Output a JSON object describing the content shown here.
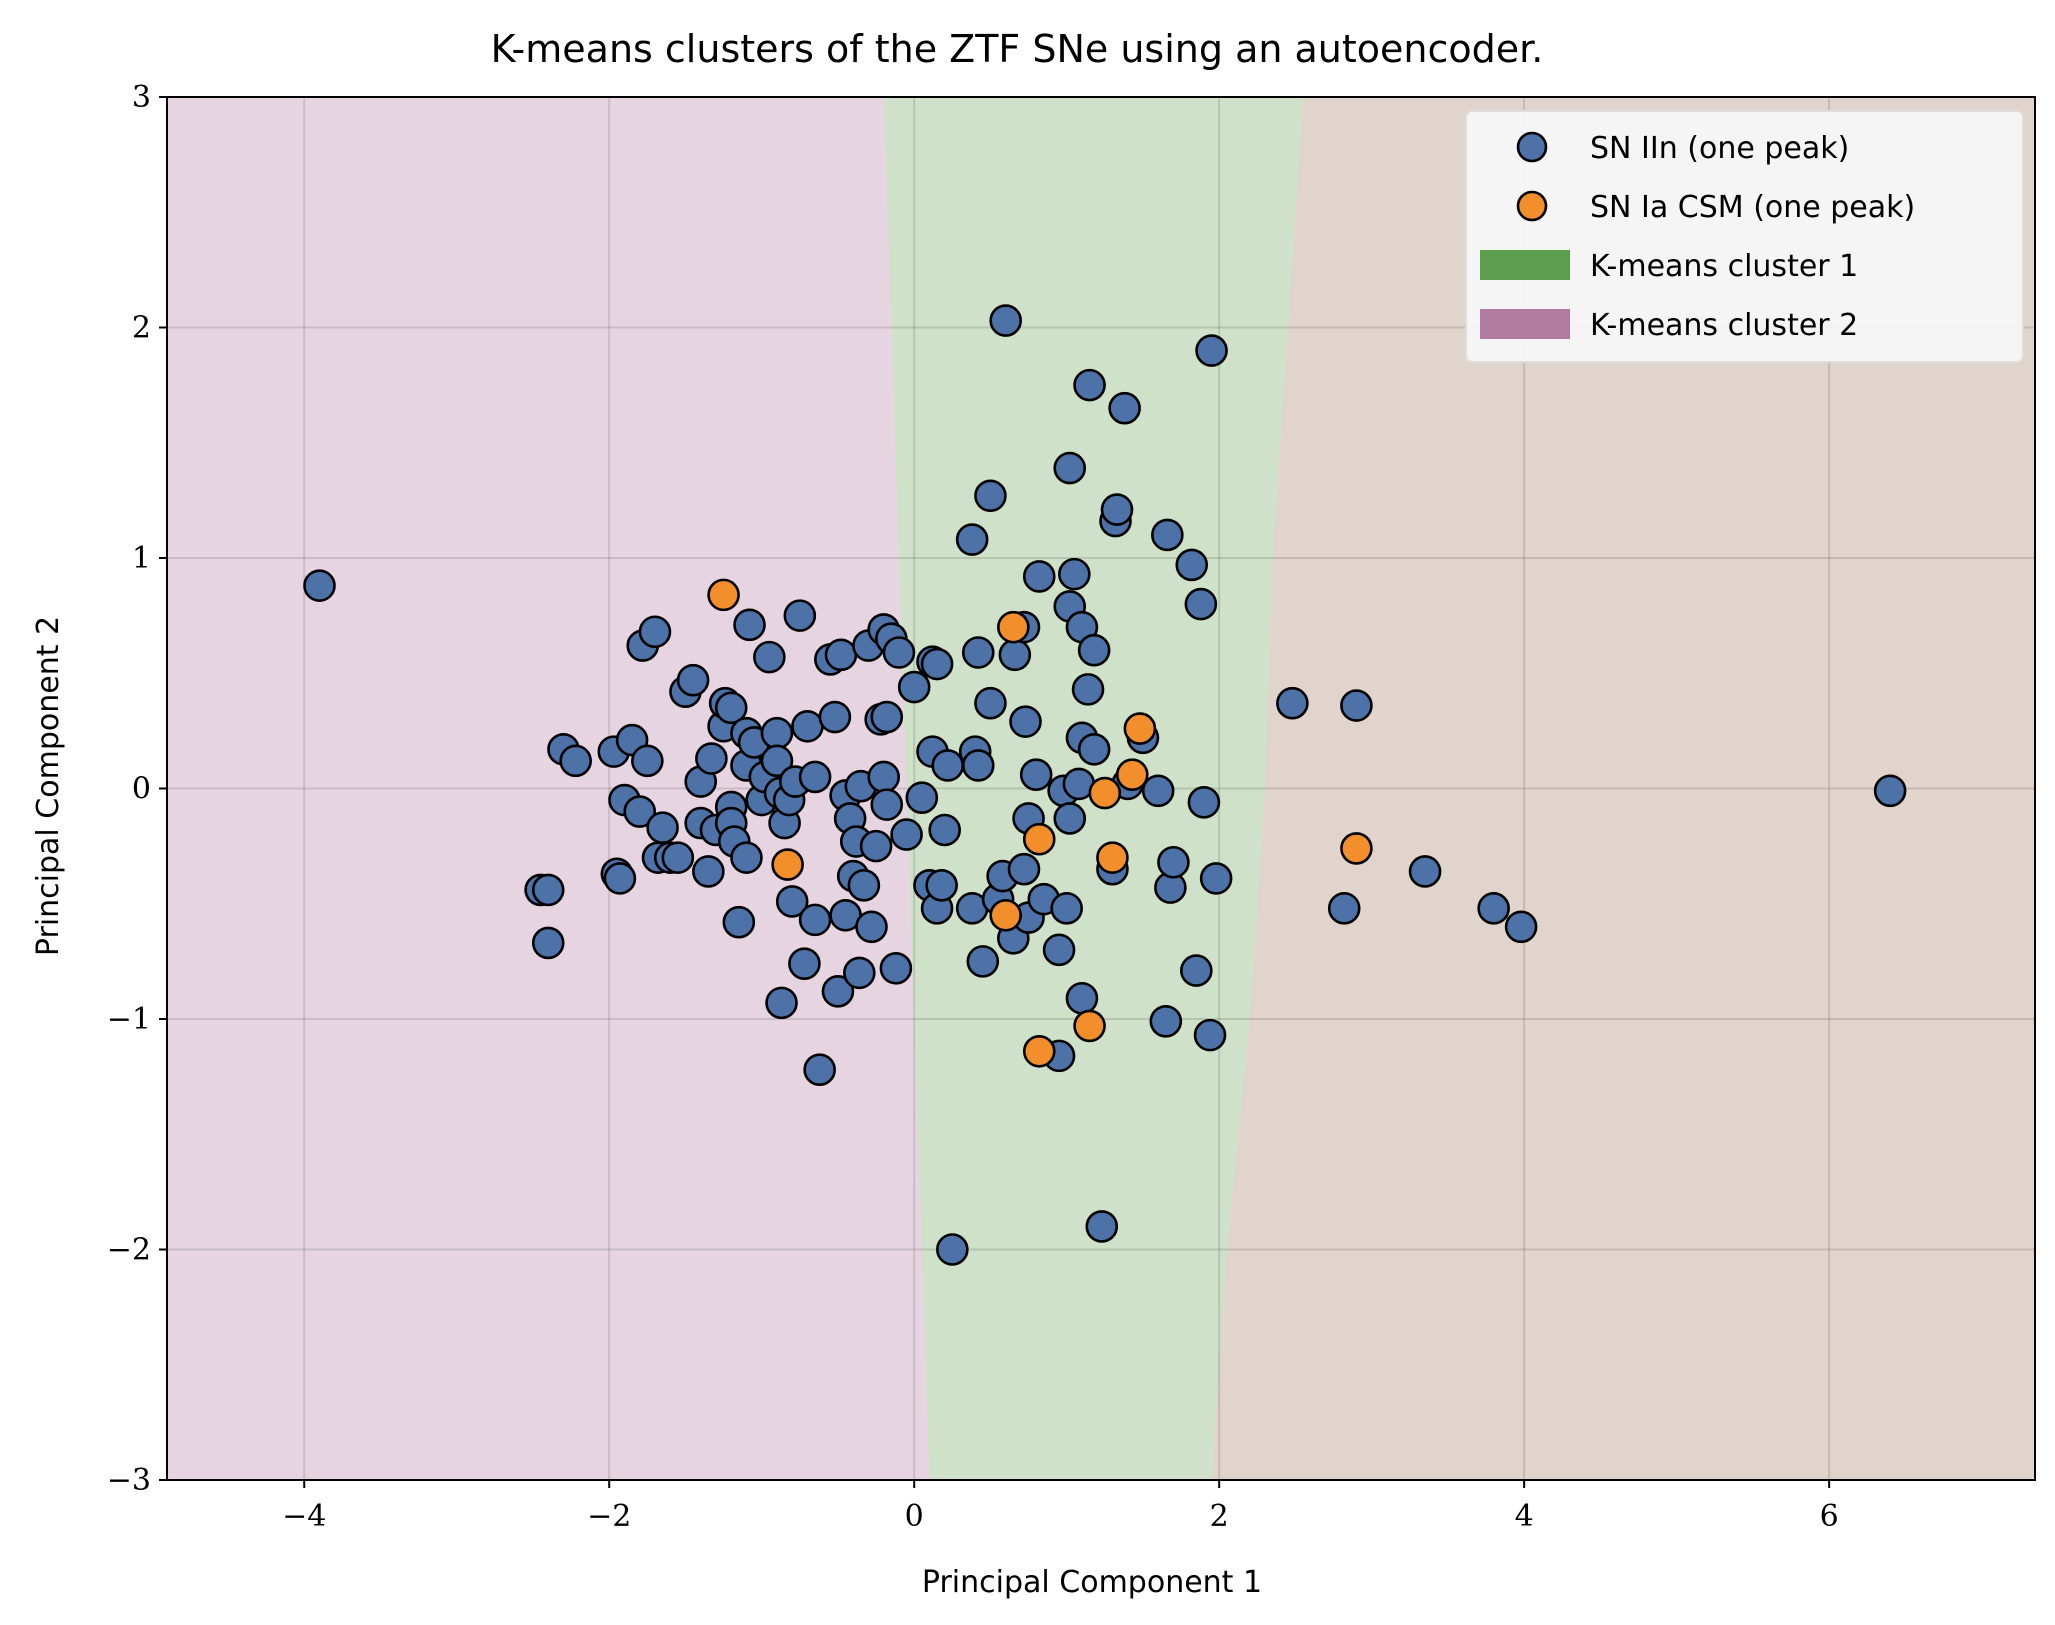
{
  "chart_data": {
    "type": "scatter",
    "title": "K-means clusters of the ZTF SNe using an autoencoder.",
    "xlabel": "Principal Component 1",
    "ylabel": "Principal Component 2",
    "xlim": [
      -4.9,
      7.35
    ],
    "ylim": [
      -3.0,
      3.0
    ],
    "xticks": [
      -4,
      -2,
      0,
      2,
      4,
      6
    ],
    "xtick_labels": [
      "−4",
      "−2",
      "0",
      "2",
      "4",
      "6"
    ],
    "yticks": [
      -3,
      -2,
      -1,
      0,
      1,
      2,
      3
    ],
    "ytick_labels": [
      "−3",
      "−2",
      "−1",
      "0",
      "1",
      "2",
      "3"
    ],
    "grid": true,
    "legend_position": "top-right",
    "regions": [
      {
        "name": "",
        "color": "#e6d5e1",
        "boundary_left": null
      },
      {
        "name": "K-means cluster 1",
        "color": "#cfe1c8",
        "left_edge": [
          [
            3.0,
            2.55
          ],
          [
            2.0,
            2.45
          ],
          [
            1.0,
            2.35
          ],
          [
            0.0,
            2.3
          ],
          [
            -1.0,
            2.2
          ],
          [
            -2.0,
            2.05
          ],
          [
            -3.0,
            1.95
          ]
        ],
        "right_edge_of_left_region": [
          [
            3.0,
            -0.2
          ],
          [
            2.0,
            -0.15
          ],
          [
            1.0,
            -0.1
          ],
          [
            0.0,
            -0.05
          ],
          [
            -1.0,
            0.0
          ],
          [
            -2.0,
            0.05
          ],
          [
            -3.0,
            0.1
          ]
        ]
      },
      {
        "name": "",
        "color": "#e1d4cc"
      }
    ],
    "legend": [
      {
        "label": "SN IIn (one peak)",
        "kind": "marker",
        "color": "#4c72a8"
      },
      {
        "label": "SN Ia CSM (one peak)",
        "kind": "marker",
        "color": "#f28e2b"
      },
      {
        "label": "K-means cluster 1",
        "kind": "patch",
        "color": "#5a9e4e"
      },
      {
        "label": "K-means cluster 2",
        "kind": "patch",
        "color": "#b07aa1"
      }
    ],
    "series": [
      {
        "name": "SN IIn (one peak)",
        "color": "#4c72a8",
        "points": [
          [
            -3.9,
            0.88
          ],
          [
            -2.45,
            -0.44
          ],
          [
            -2.4,
            -0.44
          ],
          [
            -2.4,
            -0.67
          ],
          [
            -2.3,
            0.17
          ],
          [
            -2.22,
            0.12
          ],
          [
            -1.97,
            0.16
          ],
          [
            -1.95,
            -0.37
          ],
          [
            -1.93,
            -0.39
          ],
          [
            -1.9,
            -0.05
          ],
          [
            -1.85,
            0.21
          ],
          [
            -1.8,
            -0.1
          ],
          [
            -1.78,
            0.62
          ],
          [
            -1.75,
            0.12
          ],
          [
            -1.7,
            0.68
          ],
          [
            -1.68,
            -0.3
          ],
          [
            -1.65,
            -0.17
          ],
          [
            -1.6,
            -0.3
          ],
          [
            -1.55,
            -0.3
          ],
          [
            -1.5,
            0.42
          ],
          [
            -1.45,
            0.47
          ],
          [
            -1.4,
            0.03
          ],
          [
            -1.4,
            -0.15
          ],
          [
            -1.35,
            -0.36
          ],
          [
            -1.33,
            0.13
          ],
          [
            -1.3,
            -0.18
          ],
          [
            -1.25,
            0.27
          ],
          [
            -1.24,
            0.37
          ],
          [
            -1.2,
            -0.08
          ],
          [
            -1.2,
            0.35
          ],
          [
            -1.2,
            -0.15
          ],
          [
            -1.18,
            -0.23
          ],
          [
            -1.15,
            -0.58
          ],
          [
            -1.1,
            0.1
          ],
          [
            -1.1,
            0.24
          ],
          [
            -1.1,
            -0.3
          ],
          [
            -1.08,
            0.71
          ],
          [
            -1.05,
            0.2
          ],
          [
            -1.0,
            -0.05
          ],
          [
            -0.98,
            0.05
          ],
          [
            -0.95,
            0.57
          ],
          [
            -0.9,
            0.24
          ],
          [
            -0.9,
            0.12
          ],
          [
            -0.88,
            -0.02
          ],
          [
            -0.87,
            -0.93
          ],
          [
            -0.85,
            -0.15
          ],
          [
            -0.82,
            -0.05
          ],
          [
            -0.8,
            -0.49
          ],
          [
            -0.78,
            0.03
          ],
          [
            -0.75,
            0.75
          ],
          [
            -0.72,
            -0.76
          ],
          [
            -0.7,
            0.27
          ],
          [
            -0.65,
            0.05
          ],
          [
            -0.65,
            -0.57
          ],
          [
            -0.62,
            -1.22
          ],
          [
            -0.55,
            0.56
          ],
          [
            -0.52,
            0.31
          ],
          [
            -0.5,
            -0.88
          ],
          [
            -0.48,
            0.58
          ],
          [
            -0.45,
            -0.03
          ],
          [
            -0.45,
            -0.55
          ],
          [
            -0.42,
            -0.13
          ],
          [
            -0.4,
            -0.38
          ],
          [
            -0.38,
            -0.23
          ],
          [
            -0.36,
            -0.8
          ],
          [
            -0.35,
            0.01
          ],
          [
            -0.33,
            -0.42
          ],
          [
            -0.3,
            0.62
          ],
          [
            -0.28,
            -0.6
          ],
          [
            -0.25,
            -0.25
          ],
          [
            -0.22,
            0.3
          ],
          [
            -0.2,
            0.05
          ],
          [
            -0.2,
            0.69
          ],
          [
            -0.18,
            0.31
          ],
          [
            -0.18,
            -0.07
          ],
          [
            -0.15,
            0.65
          ],
          [
            -0.12,
            -0.78
          ],
          [
            -0.1,
            0.59
          ],
          [
            -0.05,
            -0.2
          ],
          [
            0.0,
            0.44
          ],
          [
            0.05,
            -0.04
          ],
          [
            0.1,
            -0.42
          ],
          [
            0.12,
            0.16
          ],
          [
            0.12,
            0.55
          ],
          [
            0.15,
            0.54
          ],
          [
            0.15,
            -0.52
          ],
          [
            0.18,
            -0.42
          ],
          [
            0.2,
            -0.18
          ],
          [
            0.22,
            0.1
          ],
          [
            0.25,
            -2.0
          ],
          [
            0.4,
            0.16
          ],
          [
            0.38,
            -0.52
          ],
          [
            0.38,
            1.08
          ],
          [
            0.42,
            0.59
          ],
          [
            0.42,
            0.1
          ],
          [
            0.45,
            -0.75
          ],
          [
            0.5,
            0.37
          ],
          [
            0.5,
            1.27
          ],
          [
            0.55,
            -0.48
          ],
          [
            0.58,
            -0.38
          ],
          [
            0.6,
            2.03
          ],
          [
            0.65,
            -0.65
          ],
          [
            0.66,
            0.58
          ],
          [
            0.72,
            0.7
          ],
          [
            0.72,
            -0.35
          ],
          [
            0.73,
            0.29
          ],
          [
            0.75,
            -0.13
          ],
          [
            0.75,
            -0.56
          ],
          [
            0.8,
            0.06
          ],
          [
            0.82,
            0.92
          ],
          [
            0.85,
            -0.48
          ],
          [
            0.95,
            -0.7
          ],
          [
            0.95,
            -1.16
          ],
          [
            0.98,
            -0.01
          ],
          [
            1.0,
            -0.52
          ],
          [
            1.02,
            1.39
          ],
          [
            1.02,
            -0.13
          ],
          [
            1.02,
            0.79
          ],
          [
            1.05,
            0.93
          ],
          [
            1.08,
            0.02
          ],
          [
            1.1,
            0.22
          ],
          [
            1.1,
            0.7
          ],
          [
            1.1,
            -0.91
          ],
          [
            1.14,
            0.43
          ],
          [
            1.15,
            1.75
          ],
          [
            1.18,
            0.6
          ],
          [
            1.18,
            0.17
          ],
          [
            1.23,
            -1.9
          ],
          [
            1.3,
            -0.35
          ],
          [
            1.32,
            1.16
          ],
          [
            1.33,
            1.21
          ],
          [
            1.38,
            1.65
          ],
          [
            1.4,
            0.02
          ],
          [
            1.5,
            0.22
          ],
          [
            1.6,
            -0.01
          ],
          [
            1.65,
            -1.01
          ],
          [
            1.66,
            1.1
          ],
          [
            1.68,
            -0.43
          ],
          [
            1.7,
            -0.32
          ],
          [
            1.82,
            0.97
          ],
          [
            1.85,
            -0.79
          ],
          [
            1.88,
            0.8
          ],
          [
            1.9,
            -0.06
          ],
          [
            1.94,
            -1.07
          ],
          [
            1.95,
            1.9
          ],
          [
            1.98,
            -0.39
          ],
          [
            2.48,
            0.37
          ],
          [
            2.82,
            -0.52
          ],
          [
            2.9,
            0.36
          ],
          [
            3.35,
            -0.36
          ],
          [
            3.8,
            -0.52
          ],
          [
            3.98,
            -0.6
          ],
          [
            6.4,
            -0.01
          ]
        ]
      },
      {
        "name": "SN Ia CSM (one peak)",
        "color": "#f28e2b",
        "points": [
          [
            -1.25,
            0.84
          ],
          [
            -0.83,
            -0.33
          ],
          [
            0.6,
            -0.55
          ],
          [
            0.65,
            0.7
          ],
          [
            0.82,
            -0.22
          ],
          [
            0.82,
            -1.14
          ],
          [
            1.15,
            -1.03
          ],
          [
            1.25,
            -0.02
          ],
          [
            1.3,
            -0.3
          ],
          [
            1.43,
            0.06
          ],
          [
            1.48,
            0.26
          ],
          [
            2.9,
            -0.26
          ]
        ]
      }
    ]
  }
}
